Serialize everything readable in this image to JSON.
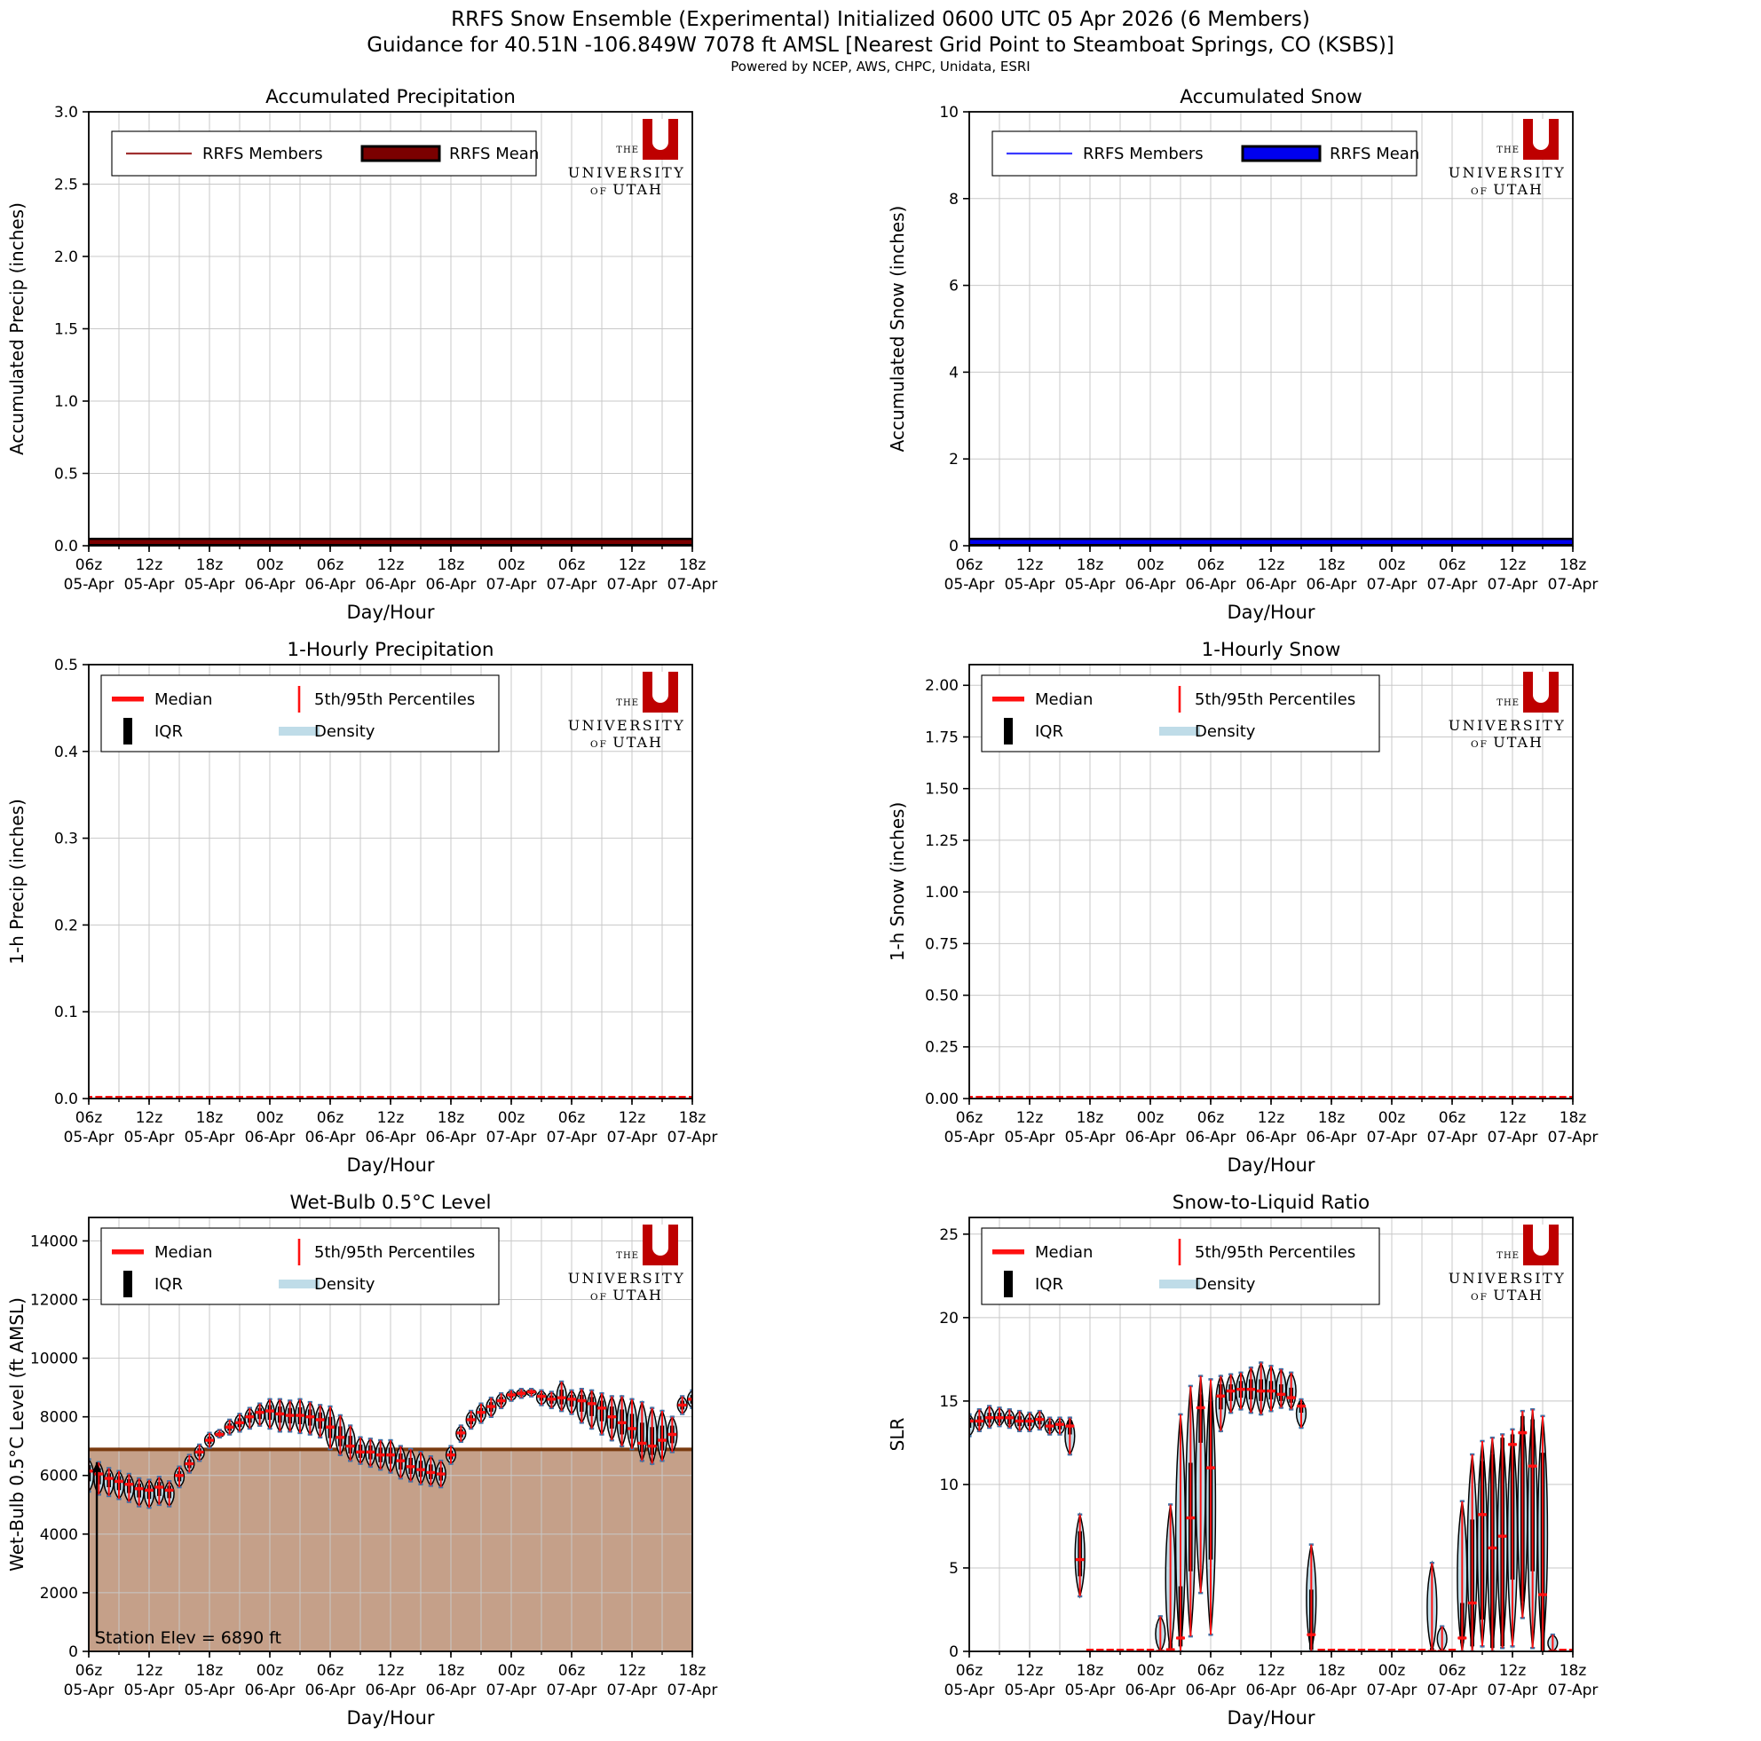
{
  "header": {
    "title1": "RRFS Snow Ensemble (Experimental) Initialized 0600 UTC 05 Apr 2026 (6 Members)",
    "title2": "Guidance for 40.51N -106.849W 7078 ft AMSL [Nearest Grid Point to Steamboat Springs, CO (KSBS)]",
    "title3": "Powered by NCEP, AWS, CHPC, Unidata, ESRI"
  },
  "logo": {
    "the": "THE",
    "u": "U",
    "line1": "UNIVERSITY",
    "of": "OF",
    "utah": "UTAH"
  },
  "colors": {
    "member_red": "#A03030",
    "mean_red": "#7B0000",
    "member_blue": "#3A3AFF",
    "mean_blue": "#0000EE",
    "median_red": "#FF1010",
    "iqr_black": "#000000",
    "density_fill": "#BFDCE8",
    "density_edge": "#3F74A8",
    "terrain_fill": "#C5A089",
    "terrain_line": "#7A3B10",
    "grid": "#C8C8C8",
    "axis": "#000000",
    "logo_red": "#BE0000",
    "logo_text": "#1f1f1f"
  },
  "xaxis": {
    "label": "Day/Hour",
    "n_hours": 61,
    "minor_step": 3,
    "ticks": [
      {
        "h": 0,
        "l1": "06z",
        "l2": "05-Apr"
      },
      {
        "h": 6,
        "l1": "12z",
        "l2": "05-Apr"
      },
      {
        "h": 12,
        "l1": "18z",
        "l2": "05-Apr"
      },
      {
        "h": 18,
        "l1": "00z",
        "l2": "06-Apr"
      },
      {
        "h": 24,
        "l1": "06z",
        "l2": "06-Apr"
      },
      {
        "h": 30,
        "l1": "12z",
        "l2": "06-Apr"
      },
      {
        "h": 36,
        "l1": "18z",
        "l2": "06-Apr"
      },
      {
        "h": 42,
        "l1": "00z",
        "l2": "07-Apr"
      },
      {
        "h": 48,
        "l1": "06z",
        "l2": "07-Apr"
      },
      {
        "h": 54,
        "l1": "12z",
        "l2": "07-Apr"
      },
      {
        "h": 60,
        "l1": "18z",
        "l2": "07-Apr"
      }
    ]
  },
  "legend_ensemble": {
    "members": "RRFS Members",
    "mean": "RRFS Mean"
  },
  "legend_violin": {
    "median": "Median",
    "pct": "5th/95th Percentiles",
    "iqr": "IQR",
    "density": "Density"
  },
  "chart_data": [
    {
      "key": "accum_precip",
      "type": "flat_line",
      "legend": "ensemble",
      "title": "Accumulated Precipitation",
      "ylabel": "Accumulated Precip (inches)",
      "xlabel": "Day/Hour",
      "ylim": [
        0,
        3
      ],
      "flat_value": 0,
      "ytick_vals": [
        0,
        0.5,
        1.0,
        1.5,
        2.0,
        2.5,
        3.0
      ],
      "ytick_labels": [
        "0.0",
        "0.5",
        "1.0",
        "1.5",
        "2.0",
        "2.5",
        "3.0"
      ],
      "series_color_role": "red"
    },
    {
      "key": "accum_snow",
      "type": "flat_line",
      "legend": "ensemble",
      "title": "Accumulated Snow",
      "ylabel": "Accumulated Snow (inches)",
      "xlabel": "Day/Hour",
      "ylim": [
        0,
        10
      ],
      "flat_value": 0,
      "ytick_vals": [
        0,
        2,
        4,
        6,
        8,
        10
      ],
      "ytick_labels": [
        "0",
        "2",
        "4",
        "6",
        "8",
        "10"
      ],
      "series_color_role": "blue"
    },
    {
      "key": "hourly_precip",
      "type": "zero_median",
      "legend": "violin",
      "title": "1-Hourly Precipitation",
      "ylabel": "1-h Precip (inches)",
      "xlabel": "Day/Hour",
      "ylim": [
        0,
        0.5
      ],
      "median_value": 0,
      "ytick_vals": [
        0,
        0.1,
        0.2,
        0.3,
        0.4,
        0.5
      ],
      "ytick_labels": [
        "0.0",
        "0.1",
        "0.2",
        "0.3",
        "0.4",
        "0.5"
      ]
    },
    {
      "key": "hourly_snow",
      "type": "zero_median",
      "legend": "violin",
      "title": "1-Hourly Snow",
      "ylabel": "1-h Snow (inches)",
      "xlabel": "Day/Hour",
      "ylim": [
        0,
        2.1
      ],
      "median_value": 0,
      "ytick_vals": [
        0,
        0.25,
        0.5,
        0.75,
        1.0,
        1.25,
        1.5,
        1.75,
        2.0
      ],
      "ytick_labels": [
        "0.00",
        "0.25",
        "0.50",
        "0.75",
        "1.00",
        "1.25",
        "1.50",
        "1.75",
        "2.00"
      ]
    },
    {
      "key": "wetbulb",
      "type": "violin",
      "legend": "violin",
      "title": "Wet-Bulb 0.5°C Level",
      "ylabel": "Wet-Bulb 0.5°C Level (ft AMSL)",
      "xlabel": "Day/Hour",
      "ylim": [
        0,
        14800
      ],
      "ytick_vals": [
        0,
        2000,
        4000,
        6000,
        8000,
        10000,
        12000,
        14000
      ],
      "ytick_labels": [
        "0",
        "2000",
        "4000",
        "6000",
        "8000",
        "10000",
        "12000",
        "14000"
      ],
      "terrain": {
        "elev": 6890,
        "label": "Station Elev = 6890 ft"
      },
      "med": [
        6150,
        6050,
        5900,
        5800,
        5700,
        5550,
        5500,
        5600,
        5500,
        6000,
        6400,
        6800,
        7200,
        7400,
        7650,
        7800,
        8000,
        8150,
        8200,
        8100,
        8050,
        8050,
        8000,
        7900,
        7650,
        7300,
        7000,
        6800,
        6800,
        6700,
        6700,
        6500,
        6300,
        6200,
        6100,
        6050,
        6700,
        7450,
        7900,
        8150,
        8350,
        8550,
        8750,
        8800,
        8850,
        8700,
        8600,
        8650,
        8600,
        8550,
        8450,
        8300,
        8000,
        7800,
        7600,
        7100,
        7000,
        7200,
        7400,
        8400,
        8600
      ],
      "lo": [
        5450,
        5350,
        5300,
        5200,
        5100,
        4950,
        4900,
        5000,
        4950,
        5600,
        6100,
        6500,
        6950,
        7300,
        7400,
        7500,
        7600,
        7700,
        7600,
        7500,
        7500,
        7450,
        7400,
        7300,
        6900,
        6700,
        6500,
        6400,
        6300,
        6200,
        6100,
        5900,
        5800,
        5700,
        5650,
        5600,
        6400,
        7150,
        7600,
        7800,
        8000,
        8300,
        8550,
        8650,
        8700,
        8400,
        8300,
        8200,
        8100,
        7800,
        7600,
        7400,
        7200,
        7000,
        6900,
        6500,
        6400,
        6500,
        6800,
        8100,
        8300
      ],
      "hi": [
        6550,
        6450,
        6250,
        6150,
        6050,
        5900,
        5850,
        5950,
        5800,
        6300,
        6700,
        7050,
        7450,
        7550,
        7900,
        8100,
        8300,
        8450,
        8600,
        8600,
        8550,
        8600,
        8500,
        8400,
        8350,
        8050,
        7700,
        7300,
        7250,
        7200,
        7200,
        7000,
        6900,
        6800,
        6650,
        6500,
        7000,
        7700,
        8200,
        8450,
        8650,
        8800,
        8900,
        8950,
        8950,
        8900,
        8850,
        9200,
        8900,
        8950,
        8900,
        8800,
        8700,
        8700,
        8600,
        8500,
        8300,
        8200,
        8000,
        8700,
        8900
      ]
    },
    {
      "key": "slr",
      "type": "violin",
      "legend": "violin",
      "title": "Snow-to-Liquid Ratio",
      "ylabel": "SLR",
      "xlabel": "Day/Hour",
      "ylim": [
        0,
        26
      ],
      "ytick_vals": [
        0,
        5,
        10,
        15,
        20,
        25
      ],
      "ytick_labels": [
        "0",
        "5",
        "10",
        "15",
        "20",
        "25"
      ],
      "med": [
        13.8,
        13.8,
        14.0,
        14.0,
        14.0,
        13.8,
        13.8,
        13.9,
        13.5,
        13.6,
        13.5,
        5.5,
        0,
        0,
        0,
        0,
        0,
        0,
        0,
        0,
        0.1,
        0.8,
        8.0,
        14.6,
        11.0,
        15.3,
        15.6,
        15.7,
        15.7,
        15.6,
        15.6,
        15.4,
        15.2,
        14.7,
        1.0,
        0,
        0,
        0,
        0,
        0,
        0,
        0,
        0,
        0,
        0,
        0,
        0,
        0,
        0,
        0.8,
        2.9,
        8.2,
        6.2,
        6.9,
        12.4,
        13.1,
        11.1,
        3.4,
        0,
        0,
        0
      ],
      "lo": [
        12.9,
        13.2,
        13.4,
        13.5,
        13.4,
        13.2,
        13.2,
        13.3,
        13.0,
        13.0,
        11.8,
        3.3,
        0,
        0,
        0,
        0,
        0,
        0,
        0,
        0,
        0,
        0,
        0.9,
        3.5,
        1.0,
        13.2,
        14.3,
        14.5,
        14.3,
        14.2,
        14.4,
        14.6,
        14.5,
        13.4,
        0,
        0,
        0,
        0,
        0,
        0,
        0,
        0,
        0,
        0,
        0,
        0,
        0,
        0,
        0,
        0,
        0,
        0.3,
        0,
        0.2,
        0.3,
        2.0,
        0.2,
        0,
        0,
        0,
        0
      ],
      "hi": [
        14.2,
        14.5,
        14.7,
        14.6,
        14.5,
        14.4,
        14.3,
        14.4,
        14.0,
        14.0,
        14.0,
        8.2,
        0,
        0,
        0,
        0,
        0,
        0,
        0,
        2.1,
        8.8,
        14.2,
        15.9,
        16.5,
        16.3,
        16.5,
        16.6,
        16.7,
        17.0,
        17.3,
        17.1,
        16.9,
        16.7,
        15.1,
        6.4,
        0,
        0,
        0,
        0,
        0,
        0,
        0,
        0,
        0,
        0,
        0,
        5.3,
        1.5,
        0,
        9.0,
        11.8,
        12.6,
        12.8,
        13.0,
        13.3,
        14.4,
        14.5,
        14.1,
        1.0,
        0,
        0
      ],
      "q1": [
        13.4,
        13.5,
        13.7,
        13.7,
        13.6,
        13.5,
        13.5,
        13.6,
        13.2,
        13.3,
        13.0,
        4.5,
        0,
        0,
        0,
        0,
        0,
        0,
        0,
        0,
        0,
        0.3,
        4.8,
        12.5,
        5.5,
        14.5,
        15.0,
        15.2,
        15.1,
        15.0,
        15.1,
        15.0,
        14.9,
        14.3,
        0.1,
        0,
        0,
        0,
        0,
        0,
        0,
        0,
        0,
        0,
        0,
        0,
        0,
        0,
        0,
        0.5,
        0.3,
        1.9,
        0.2,
        0.3,
        4.3,
        3.0,
        4.8,
        0,
        0,
        0,
        0
      ],
      "q3": [
        14.0,
        14.1,
        14.3,
        14.3,
        14.2,
        14.1,
        14.0,
        14.1,
        13.8,
        13.8,
        13.8,
        7.2,
        0,
        0,
        0,
        0,
        0,
        0,
        0,
        0.1,
        0.5,
        3.9,
        11.3,
        15.4,
        15.0,
        16.0,
        16.0,
        16.2,
        16.3,
        16.3,
        16.2,
        16.0,
        15.8,
        14.9,
        3.7,
        0,
        0,
        0,
        0,
        0,
        0,
        0,
        0,
        0,
        0,
        0,
        0.2,
        0.1,
        0,
        2.9,
        7.9,
        11.4,
        11.8,
        12.8,
        13.0,
        14.1,
        13.9,
        11.9,
        0.1,
        0,
        0
      ]
    }
  ]
}
